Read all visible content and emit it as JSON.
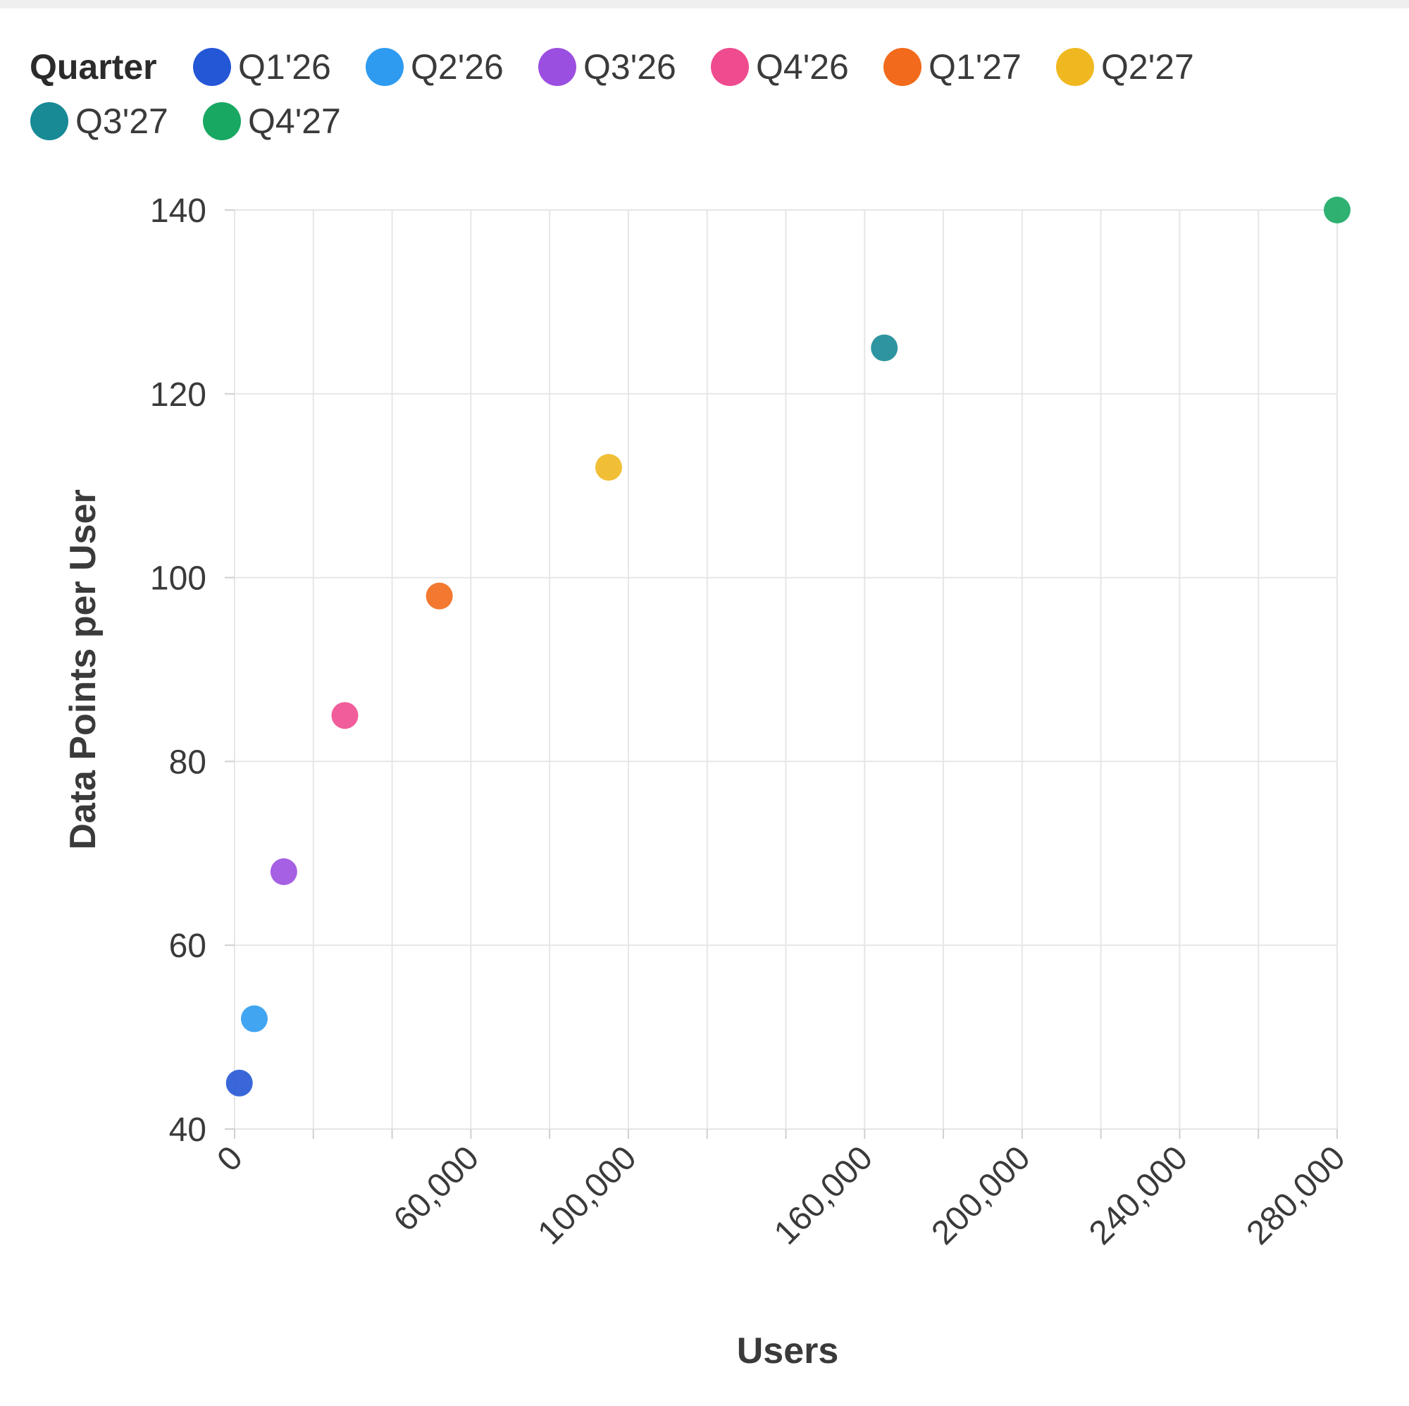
{
  "chart_data": {
    "type": "scatter",
    "legend": {
      "title": "Quarter",
      "position": "top-left"
    },
    "xlabel": "Users",
    "ylabel": "Data Points per User",
    "xlim": [
      0,
      280000
    ],
    "ylim": [
      40,
      140
    ],
    "x_ticks": [
      0,
      20000,
      40000,
      60000,
      80000,
      100000,
      120000,
      140000,
      160000,
      180000,
      200000,
      220000,
      240000,
      260000,
      280000
    ],
    "x_tick_labels": [
      {
        "value": 0,
        "label": "0"
      },
      {
        "value": 60000,
        "label": "60,000"
      },
      {
        "value": 100000,
        "label": "100,000"
      },
      {
        "value": 160000,
        "label": "160,000"
      },
      {
        "value": 200000,
        "label": "200,000"
      },
      {
        "value": 240000,
        "label": "240,000"
      },
      {
        "value": 280000,
        "label": "280,000"
      }
    ],
    "y_ticks": [
      40,
      60,
      80,
      100,
      120,
      140
    ],
    "y_tick_labels": [
      "40",
      "60",
      "80",
      "100",
      "120",
      "140"
    ],
    "grid": true,
    "series": [
      {
        "name": "Q1'26",
        "color": "#2457d6",
        "x": 1200,
        "y": 45
      },
      {
        "name": "Q2'26",
        "color": "#2e9bf0",
        "x": 5000,
        "y": 52
      },
      {
        "name": "Q3'26",
        "color": "#9b4fe0",
        "x": 12500,
        "y": 68
      },
      {
        "name": "Q4'26",
        "color": "#ef4b8f",
        "x": 28000,
        "y": 85
      },
      {
        "name": "Q1'27",
        "color": "#f26a1b",
        "x": 52000,
        "y": 98
      },
      {
        "name": "Q2'27",
        "color": "#f0b820",
        "x": 95000,
        "y": 112
      },
      {
        "name": "Q3'27",
        "color": "#178a96",
        "x": 165000,
        "y": 125
      },
      {
        "name": "Q4'27",
        "color": "#18a862",
        "x": 280000,
        "y": 140
      }
    ]
  }
}
